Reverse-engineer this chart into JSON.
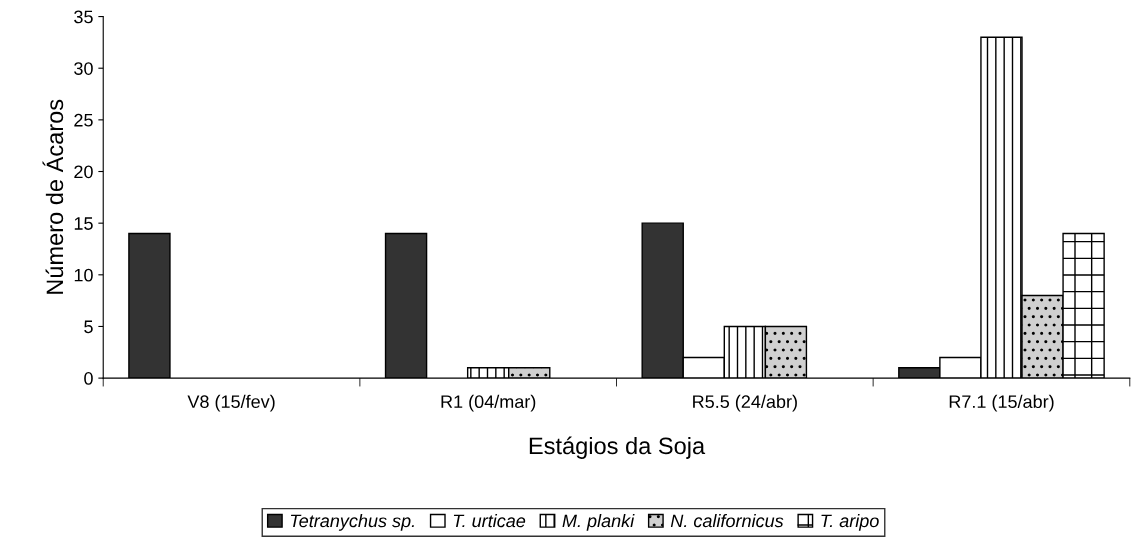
{
  "chart_data": {
    "type": "bar",
    "xlabel": "Estágios da Soja",
    "ylabel": "Número de Ácaros",
    "categories": [
      "V8 (15/fev)",
      "R1 (04/mar)",
      "R5.5 (24/abr)",
      "R7.1 (15/abr)"
    ],
    "series": [
      {
        "name": "Tetranychus sp.",
        "color": "#333333",
        "values": [
          14,
          14,
          15,
          1
        ]
      },
      {
        "name": "T. urticae",
        "color": "#ffffff",
        "values": [
          0,
          0,
          2,
          2
        ]
      },
      {
        "name": "M. planki",
        "color": "#ffffff",
        "values": [
          0,
          1,
          5,
          33
        ]
      },
      {
        "name": "N. californicus",
        "color": "#d0d0d0",
        "values": [
          0,
          1,
          5,
          8
        ]
      },
      {
        "name": "T. aripo",
        "color": "#ffffff",
        "values": [
          0,
          0,
          0,
          14
        ]
      }
    ],
    "ylim": [
      0,
      35
    ],
    "yticks": [
      0,
      5,
      10,
      15,
      20,
      25,
      30,
      35
    ],
    "grid": false,
    "legend": "bottom"
  }
}
